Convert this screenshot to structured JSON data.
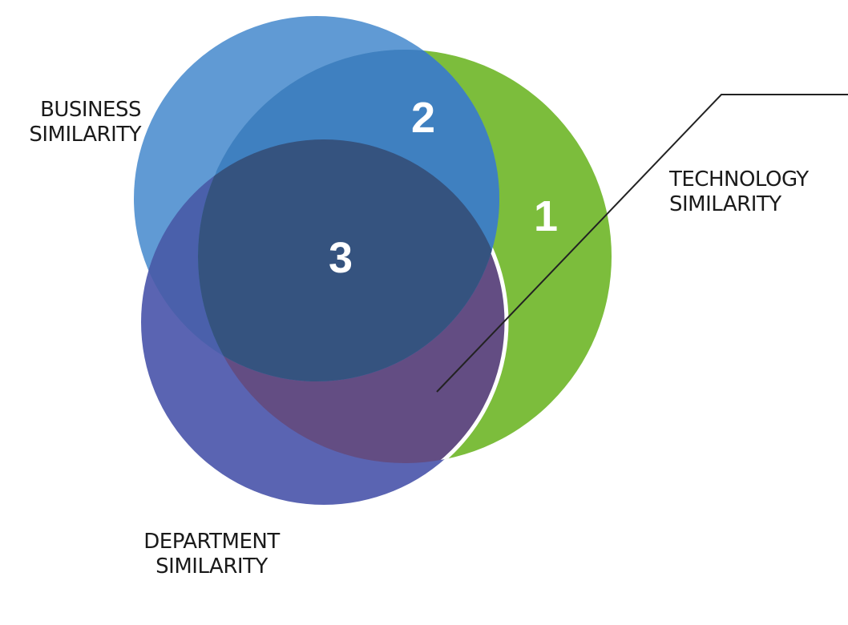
{
  "colors": {
    "business": "#4f8fcf",
    "technology": "#7cbd3c",
    "department": "#5a64b2",
    "overlap_business_technology": "#3f80c0",
    "overlap_all": "#35537f",
    "overlap_technology_department": "#634d83",
    "callout_line": "#222222",
    "region_number": "#ffffff"
  },
  "sets": {
    "business": {
      "label_line1": "BUSINESS",
      "label_line2": "SIMILARITY"
    },
    "technology": {
      "label_line1": "TECHNOLOGY",
      "label_line2": "SIMILARITY"
    },
    "department": {
      "label_line1": "DEPARTMENT",
      "label_line2": "SIMILARITY"
    }
  },
  "regions": {
    "technology_only": "1",
    "business_technology": "2",
    "all_three": "3"
  }
}
